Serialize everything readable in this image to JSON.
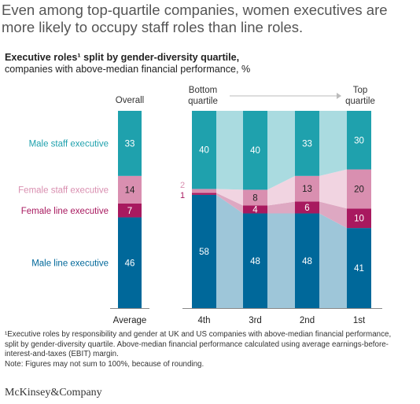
{
  "headline": "Even among top-quartile companies, women executives are more likely to occupy staff roles than line roles.",
  "subtitle_bold": "Executive roles¹ split by gender-diversity quartile,",
  "subtitle_rest": "companies with above-median financial performance, %",
  "footnote": {
    "line1": "¹Executive roles by responsibility and gender at UK and US companies with above-median financial performance,",
    "line2": "split by gender-diversity quartile. Above-median financial performance calculated using average earnings-before-",
    "line3": "interest-and-taxes (EBIT) margin.",
    "note": "Note: Figures may not sum to 100%, because of rounding."
  },
  "brand": "McKinsey&Company",
  "chart_data": {
    "type": "bar",
    "stacked": true,
    "overall_header": "Overall",
    "bottom_header": [
      "Bottom",
      "quartile"
    ],
    "top_header": [
      "Top",
      "quartile"
    ],
    "categories": [
      "Average",
      "4th",
      "3rd",
      "2nd",
      "1st"
    ],
    "series": [
      {
        "name": "Male line executive",
        "color": "#00689A",
        "values": [
          46,
          58,
          48,
          48,
          41
        ]
      },
      {
        "name": "Female line executive",
        "color": "#A8195F",
        "values": [
          7,
          1,
          4,
          6,
          10
        ]
      },
      {
        "name": "Female staff executive",
        "color": "#D98FB0",
        "values": [
          14,
          2,
          8,
          13,
          20
        ]
      },
      {
        "name": "Male staff executive",
        "color": "#1FA1AD",
        "values": [
          33,
          40,
          40,
          33,
          30
        ]
      }
    ],
    "label_colors": {
      "Male line executive": "#00689A",
      "Female line executive": "#A8195F",
      "Female staff executive": "#D98FB0",
      "Male staff executive": "#1FA1AD"
    },
    "outside_labels": [
      "2",
      "1"
    ],
    "ylim": [
      0,
      100
    ]
  }
}
